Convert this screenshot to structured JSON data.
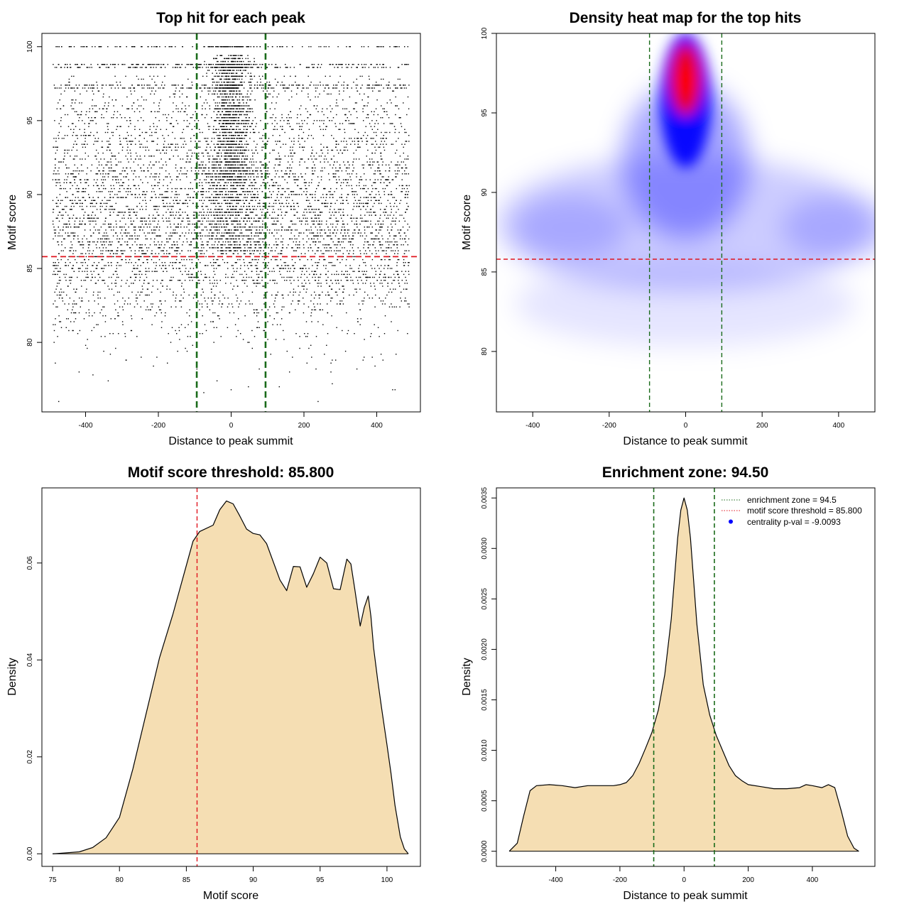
{
  "chart_data": [
    {
      "type": "scatter",
      "title": "Top hit for each peak",
      "xlabel": "Distance to peak summit",
      "ylabel": "Motif score",
      "xlim": [
        -520,
        520
      ],
      "ylim": [
        75.3,
        100.9
      ],
      "xticks": [
        -400,
        -200,
        0,
        200,
        400
      ],
      "yticks": [
        80,
        85,
        90,
        95,
        100
      ],
      "score_threshold": 85.8,
      "enrichment_zone": [
        -94.5,
        94.5
      ],
      "colors": {
        "points": "#000000",
        "threshold_line": "#e0141e",
        "zone_lines": "#1a6b1a"
      },
      "point_distribution": {
        "x_range": [
          -490,
          490
        ],
        "y_range": [
          76,
          100
        ],
        "discrete_scores": [
          100,
          98.8,
          98.6,
          97.4,
          97.2
        ],
        "central_enrichment_above": 91
      }
    },
    {
      "type": "heatmap",
      "title": "Density heat map for the top hits",
      "xlabel": "Distance to peak summit",
      "ylabel": "Motif score",
      "xlim": [
        -495,
        495
      ],
      "ylim": [
        76.2,
        100
      ],
      "xticks": [
        -400,
        -200,
        0,
        200,
        400
      ],
      "yticks": [
        80,
        85,
        90,
        95,
        100
      ],
      "score_threshold": 85.8,
      "enrichment_zone": [
        -94.5,
        94.5
      ],
      "density_peak": {
        "x": 0,
        "y": 97
      },
      "colors": {
        "low": "#ffffff",
        "mid": "#0000ff",
        "high": "#ff0000",
        "threshold_line": "#e0141e",
        "zone_lines": "#1a6b1a"
      }
    },
    {
      "type": "area",
      "title": "Motif score threshold: 85.800",
      "xlabel": "Motif score",
      "ylabel": "Density",
      "xlim": [
        74.2,
        102.5
      ],
      "ylim": [
        -0.0026,
        0.0755
      ],
      "xticks": [
        75,
        80,
        85,
        90,
        95,
        100
      ],
      "yticks": [
        0.0,
        0.02,
        0.04,
        0.06
      ],
      "ytick_labels": [
        "0.00",
        "0.02",
        "0.04",
        "0.06"
      ],
      "threshold": 85.8,
      "x": [
        75,
        77,
        78,
        79,
        80,
        81,
        82,
        83,
        84,
        85,
        85.5,
        86,
        87,
        87.5,
        88,
        88.5,
        89,
        89.5,
        90,
        90.5,
        91,
        92,
        92.5,
        93,
        93.5,
        94,
        94.5,
        95,
        95.5,
        96,
        96.5,
        97,
        97.3,
        97.6,
        98,
        98.3,
        98.6,
        98.8,
        99,
        99.3,
        99.6,
        100,
        100.3,
        100.6,
        101,
        101.3,
        101.6
      ],
      "values": [
        0.0,
        0.0004,
        0.0013,
        0.0033,
        0.0075,
        0.0175,
        0.029,
        0.0405,
        0.0495,
        0.0595,
        0.0645,
        0.0665,
        0.0678,
        0.071,
        0.0728,
        0.0722,
        0.0697,
        0.067,
        0.0661,
        0.0658,
        0.064,
        0.0565,
        0.0543,
        0.0593,
        0.0592,
        0.055,
        0.0578,
        0.0612,
        0.06,
        0.0547,
        0.0545,
        0.0608,
        0.0598,
        0.0545,
        0.047,
        0.0508,
        0.0532,
        0.049,
        0.0425,
        0.036,
        0.03,
        0.0225,
        0.0166,
        0.01,
        0.0035,
        0.001,
        0.0
      ],
      "colors": {
        "fill": "#f5deb3",
        "line": "#000000",
        "threshold_line": "#e0141e"
      }
    },
    {
      "type": "area",
      "title": "Enrichment zone: 94.50",
      "xlabel": "Distance to peak summit",
      "ylabel": "Density",
      "xlim": [
        -585,
        595
      ],
      "ylim": [
        -0.00015,
        0.0036
      ],
      "xticks": [
        -400,
        -200,
        0,
        200,
        400
      ],
      "yticks": [
        0.0,
        0.0005,
        0.001,
        0.0015,
        0.002,
        0.0025,
        0.003,
        0.0035
      ],
      "ytick_labels": [
        "0.0000",
        "0.0005",
        "0.0010",
        "0.0015",
        "0.0020",
        "0.0025",
        "0.0030",
        "0.0035"
      ],
      "enrichment_zone": [
        -94.5,
        94.5
      ],
      "x": [
        -545,
        -520,
        -500,
        -480,
        -460,
        -420,
        -380,
        -340,
        -300,
        -260,
        -220,
        -200,
        -180,
        -160,
        -140,
        -120,
        -100,
        -80,
        -60,
        -40,
        -20,
        -10,
        0,
        10,
        20,
        40,
        60,
        80,
        100,
        120,
        140,
        160,
        180,
        200,
        240,
        280,
        320,
        360,
        380,
        400,
        430,
        450,
        470,
        490,
        510,
        530,
        545
      ],
      "values": [
        0.0,
        8e-05,
        0.00035,
        0.0006,
        0.00065,
        0.00066,
        0.00065,
        0.00063,
        0.00065,
        0.00065,
        0.00065,
        0.00066,
        0.00068,
        0.00075,
        0.00087,
        0.00102,
        0.00118,
        0.0014,
        0.00175,
        0.0023,
        0.0031,
        0.00338,
        0.0035,
        0.00338,
        0.0031,
        0.00225,
        0.00165,
        0.00135,
        0.00115,
        0.001,
        0.00085,
        0.00075,
        0.0007,
        0.00066,
        0.00064,
        0.00062,
        0.00062,
        0.00063,
        0.00066,
        0.00065,
        0.00063,
        0.00066,
        0.00063,
        0.0004,
        0.00015,
        3e-05,
        0.0
      ],
      "colors": {
        "fill": "#f5deb3",
        "line": "#000000",
        "zone_lines": "#1a6b1a"
      },
      "legend": {
        "position": "top-right",
        "entries": [
          {
            "label": "enrichment zone = 94.5",
            "style": "dotted-line",
            "color": "#1a6b1a"
          },
          {
            "label": "motif score threshold = 85.800",
            "style": "dotted-line",
            "color": "#e0141e"
          },
          {
            "label": "centrality p-val = -9.0093",
            "style": "point",
            "color": "#0000ff"
          }
        ]
      }
    }
  ]
}
